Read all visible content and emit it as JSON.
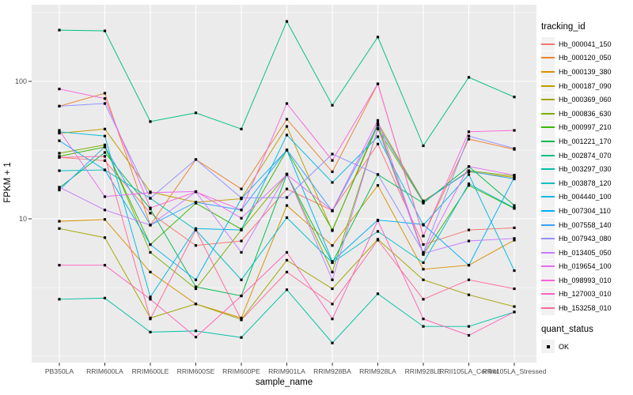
{
  "chart_data": {
    "type": "line",
    "xlabel": "sample_name",
    "ylabel": "FPKM + 1",
    "y_scale": "log10",
    "ylim": [
      0.9,
      360
    ],
    "y_ticks": [
      {
        "label": "100",
        "value": 100
      },
      {
        "label": "10",
        "value": 10
      }
    ],
    "grid": {
      "panel_bg": "#EBEBEB",
      "grid_color": "#FFFFFF",
      "minor_breaks_log10": [
        0.0,
        0.5,
        1.5,
        2.5
      ]
    },
    "legend": {
      "title": "tracking_id",
      "position": "right"
    },
    "quant_status": {
      "title": "quant_status",
      "items": [
        {
          "label": "OK",
          "marker": "black-square"
        }
      ]
    },
    "marker": "black-square",
    "categories": [
      "PB350LA",
      "RRIM600LA",
      "RRIM600LE",
      "RRIM600SE",
      "RRIM600PE",
      "RRIM901LA",
      "RRIM928BA",
      "RRIM928LA",
      "RRIM928LE",
      "RRII105LA_Control",
      "RRII105LA_Stressed"
    ],
    "series": [
      {
        "name": "Hb_000041_150",
        "color": "#F8766D",
        "values": [
          28,
          26.5,
          11.0,
          6.4,
          6.9,
          16.5,
          11.5,
          35,
          6.5,
          8.3,
          8.6
        ]
      },
      {
        "name": "Hb_000120_050",
        "color": "#EA8331",
        "values": [
          66,
          82,
          9.0,
          27,
          16.5,
          53,
          22,
          96,
          7.5,
          38,
          32
        ]
      },
      {
        "name": "Hb_000139_380",
        "color": "#D89000",
        "values": [
          9.6,
          9.9,
          4.1,
          2.4,
          1.9,
          12.5,
          6.4,
          17.5,
          4.3,
          4.6,
          7.0
        ]
      },
      {
        "name": "Hb_000187_090",
        "color": "#C09B00",
        "values": [
          42,
          45,
          15.7,
          13.2,
          14.0,
          47,
          8.2,
          50,
          13.5,
          22,
          20
        ]
      },
      {
        "name": "Hb_000369_060",
        "color": "#A3A500",
        "values": [
          8.5,
          7.3,
          1.9,
          2.4,
          1.85,
          5.0,
          3.1,
          7.1,
          3.6,
          2.8,
          2.3
        ]
      },
      {
        "name": "Hb_000836_630",
        "color": "#7CAE00",
        "values": [
          30,
          34.5,
          5.7,
          3.1,
          8.3,
          21,
          4.1,
          45,
          13.2,
          22.4,
          20.5
        ]
      },
      {
        "name": "Hb_000997_210",
        "color": "#39B600",
        "values": [
          28.5,
          33.3,
          6.5,
          13.0,
          8.4,
          31.6,
          8.3,
          48,
          5.5,
          17.5,
          11.9
        ]
      },
      {
        "name": "Hb_001221_170",
        "color": "#00BB4E",
        "values": [
          16.8,
          30.4,
          11.8,
          3.2,
          2.75,
          21,
          4.8,
          21,
          13.0,
          24,
          12.5
        ]
      },
      {
        "name": "Hb_002874_070",
        "color": "#00BF7D",
        "values": [
          236,
          233,
          51,
          59,
          45,
          273,
          67,
          210,
          34,
          107,
          77
        ]
      },
      {
        "name": "Hb_003297_030",
        "color": "#00C1A3",
        "values": [
          2.6,
          2.65,
          1.5,
          1.53,
          1.37,
          3.05,
          1.25,
          2.85,
          1.65,
          1.65,
          2.1
        ]
      },
      {
        "name": "Hb_003878_120",
        "color": "#00BFC4",
        "values": [
          22.4,
          22.7,
          14.1,
          8.3,
          3.6,
          10.2,
          4.8,
          8.1,
          4.8,
          18,
          12.0
        ]
      },
      {
        "name": "Hb_004440_100",
        "color": "#00BAE0",
        "values": [
          43,
          40,
          2.7,
          8.5,
          8.3,
          40.7,
          18.4,
          39.6,
          9.0,
          21,
          4.2
        ]
      },
      {
        "name": "Hb_007304_110",
        "color": "#00B0F6",
        "values": [
          37,
          22.7,
          6.5,
          3.6,
          14.0,
          31.6,
          4.9,
          9.8,
          9.1,
          4.6,
          20
        ]
      },
      {
        "name": "Hb_007558_140",
        "color": "#35A2FF",
        "values": [
          16.2,
          33.5,
          9.0,
          13.2,
          11.6,
          31.8,
          11.4,
          48,
          13.3,
          22.2,
          19.5
        ]
      },
      {
        "name": "Hb_007943_080",
        "color": "#9590FF",
        "values": [
          66,
          69,
          14.1,
          27,
          14.2,
          14.3,
          29.6,
          21,
          5.7,
          40,
          32.5
        ]
      },
      {
        "name": "Hb_013405_050",
        "color": "#C77CFF",
        "values": [
          17.0,
          11.6,
          9.0,
          15.7,
          5.7,
          21.2,
          3.6,
          45.5,
          5.6,
          6.9,
          7.2
        ]
      },
      {
        "name": "Hb_019654_100",
        "color": "#E76BF3",
        "values": [
          44,
          14.5,
          15.5,
          15.8,
          10.1,
          21,
          11.5,
          52,
          5.6,
          24,
          20.8
        ]
      },
      {
        "name": "Hb_098993_010",
        "color": "#FA62DB",
        "values": [
          88,
          75,
          12,
          15.7,
          11.6,
          69,
          26.6,
          96,
          7.5,
          43,
          44
        ]
      },
      {
        "name": "Hb_127003_010",
        "color": "#FF62BC",
        "values": [
          4.6,
          4.6,
          2.6,
          1.38,
          2.75,
          5.7,
          1.87,
          9.7,
          1.87,
          1.42,
          2.1
        ]
      },
      {
        "name": "Hb_153258_010",
        "color": "#FF6A98",
        "values": [
          28,
          28.5,
          1.87,
          8.3,
          1.84,
          4.1,
          2.4,
          7.0,
          2.6,
          3.6,
          3.1
        ]
      }
    ]
  }
}
